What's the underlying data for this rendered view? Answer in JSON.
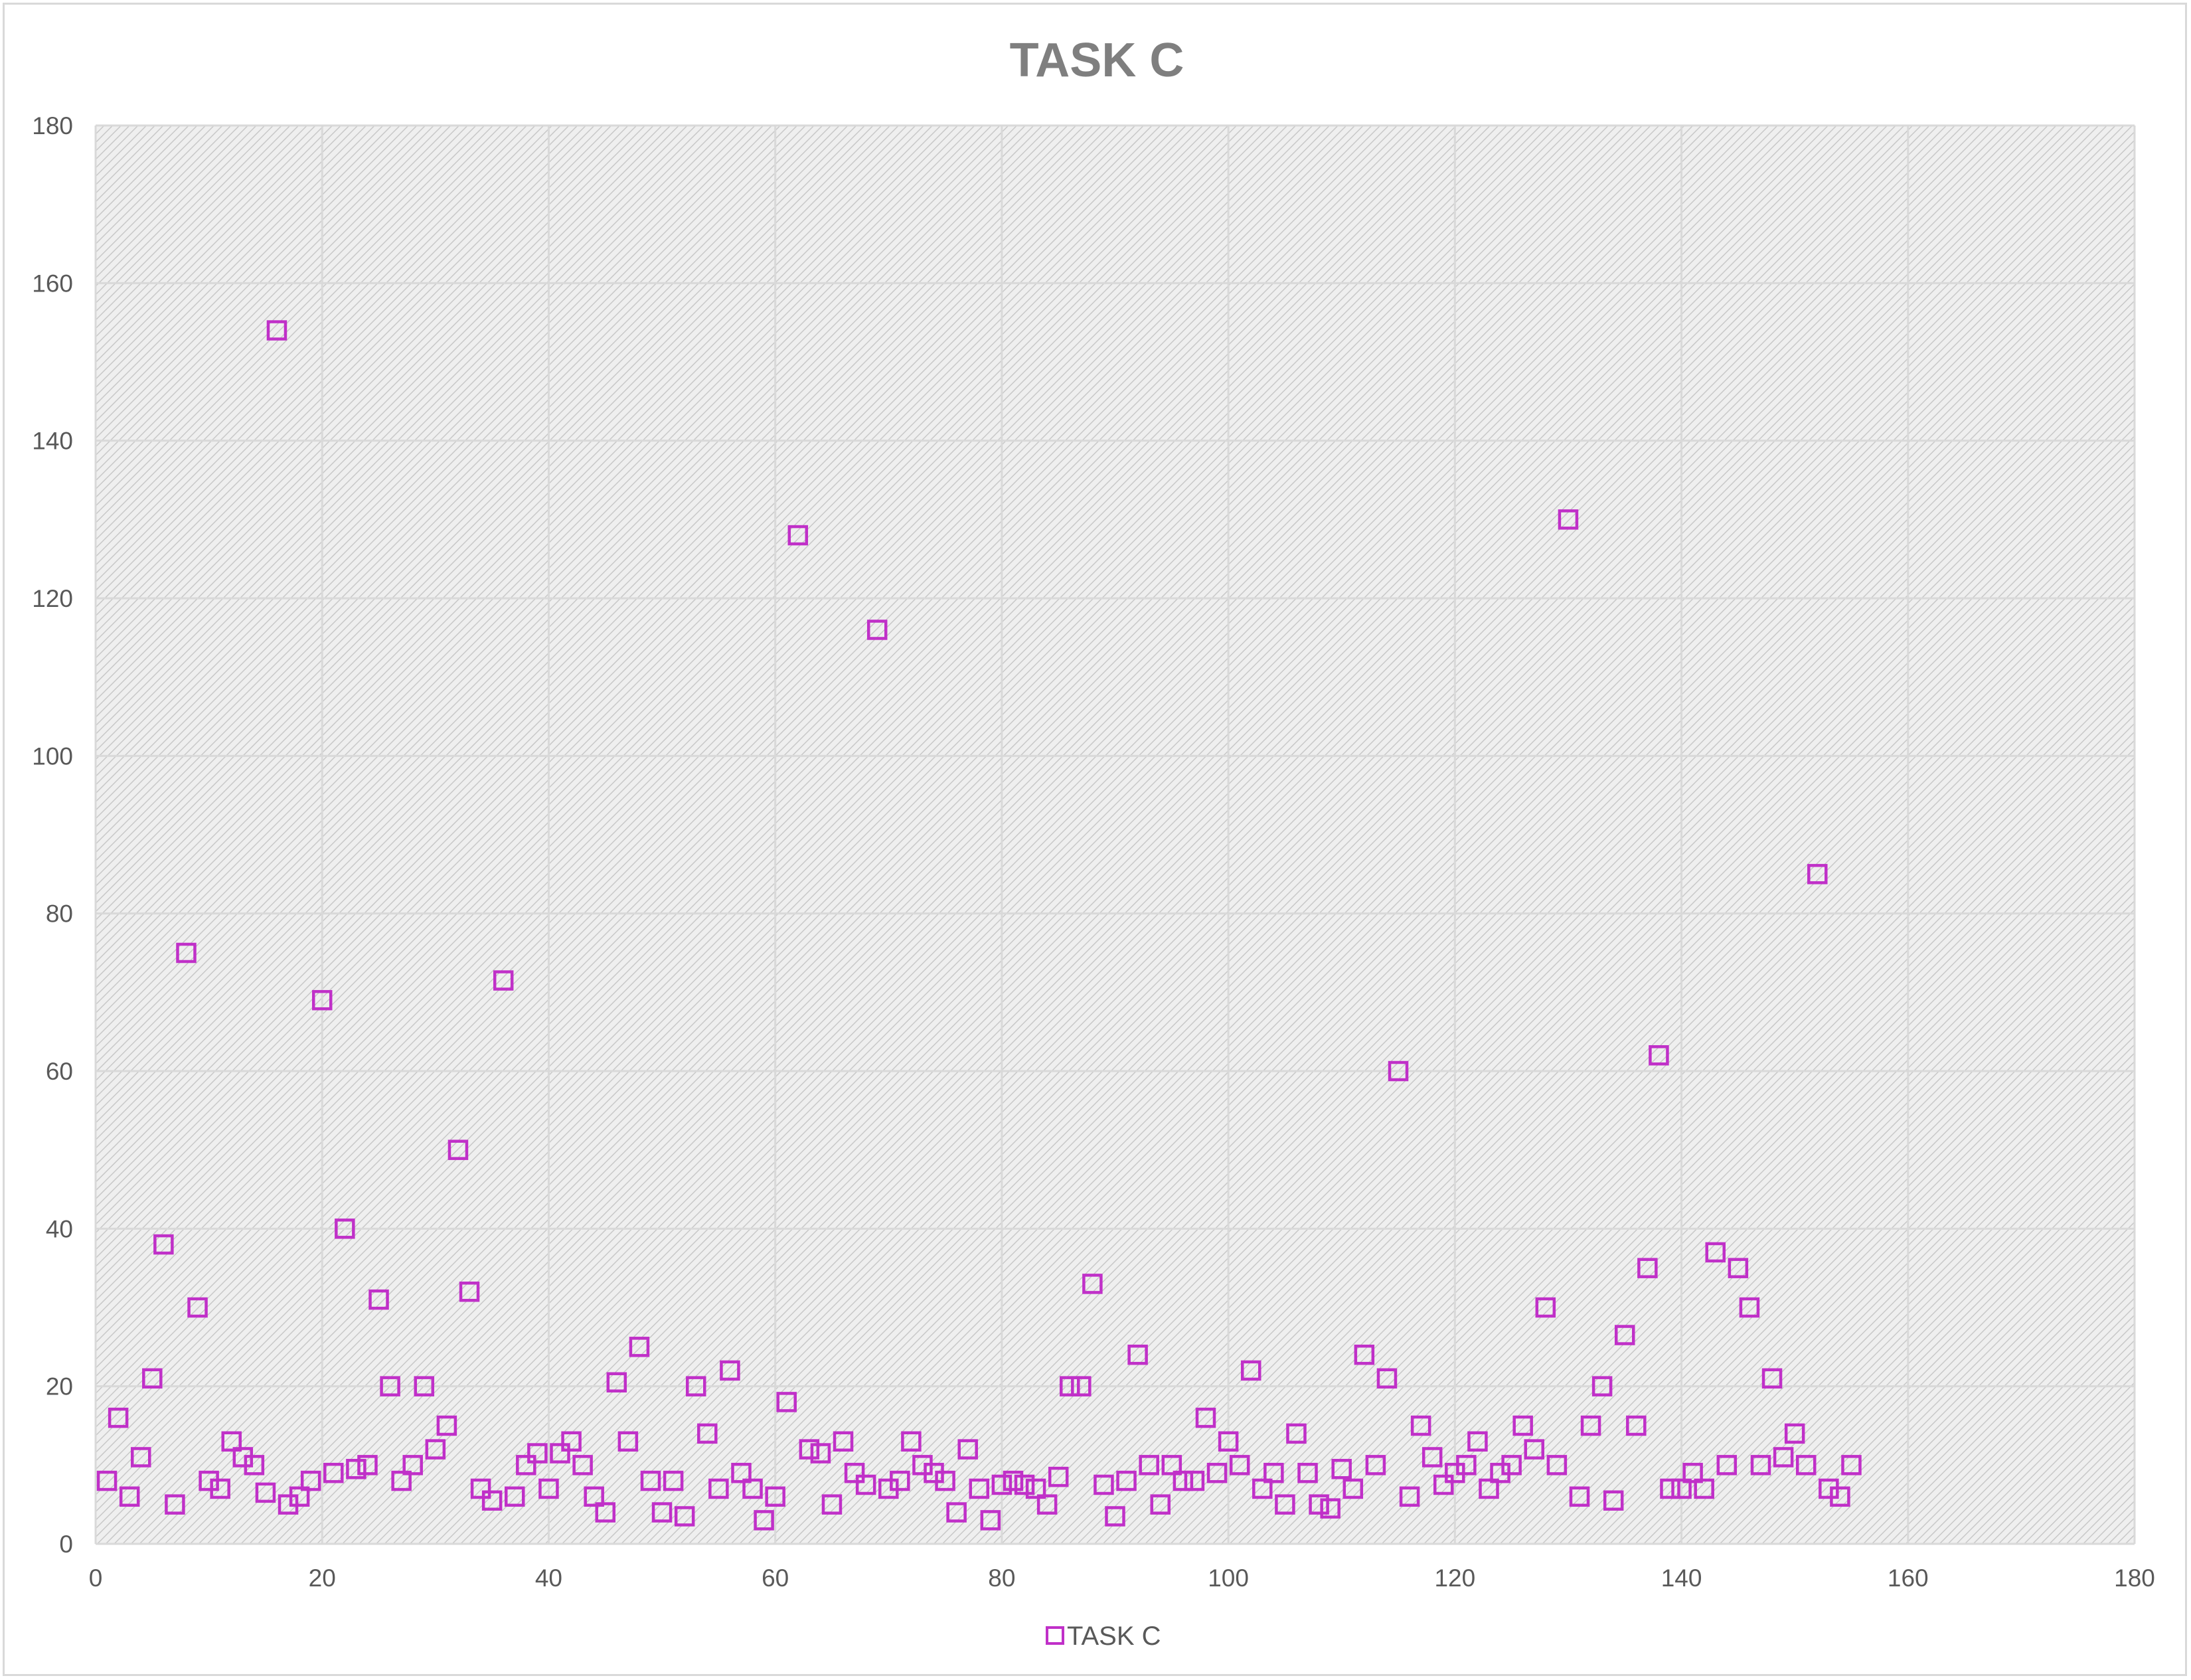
{
  "chart_data": {
    "type": "scatter",
    "title": "TASK C",
    "xlabel": "",
    "ylabel": "",
    "xlim": [
      0,
      180
    ],
    "ylim": [
      0,
      180
    ],
    "xticks": [
      0,
      20,
      40,
      60,
      80,
      100,
      120,
      140,
      160,
      180
    ],
    "yticks": [
      0,
      20,
      40,
      60,
      80,
      100,
      120,
      140,
      160,
      180
    ],
    "grid": true,
    "legend": "bottom",
    "marker": "square",
    "colors": {
      "series": "#c030c8",
      "grid": "#d9d9d9",
      "plot_bg": "#ececec",
      "hatch": "#c8c8c8"
    },
    "series": [
      {
        "name": "TASK C",
        "points": [
          [
            1,
            8
          ],
          [
            2,
            16
          ],
          [
            3,
            6
          ],
          [
            4,
            11
          ],
          [
            5,
            21
          ],
          [
            6,
            38
          ],
          [
            7,
            5
          ],
          [
            8,
            75
          ],
          [
            9,
            30
          ],
          [
            10,
            8
          ],
          [
            11,
            7
          ],
          [
            12,
            13
          ],
          [
            13,
            11
          ],
          [
            14,
            10
          ],
          [
            15,
            6.5
          ],
          [
            16,
            154
          ],
          [
            17,
            5
          ],
          [
            18,
            6
          ],
          [
            19,
            8
          ],
          [
            20,
            69
          ],
          [
            21,
            9
          ],
          [
            22,
            40
          ],
          [
            23,
            9.5
          ],
          [
            24,
            10
          ],
          [
            25,
            31
          ],
          [
            26,
            20
          ],
          [
            27,
            8
          ],
          [
            28,
            10
          ],
          [
            29,
            20
          ],
          [
            30,
            12
          ],
          [
            31,
            15
          ],
          [
            32,
            50
          ],
          [
            33,
            32
          ],
          [
            34,
            7
          ],
          [
            35,
            5.5
          ],
          [
            36,
            71.5
          ],
          [
            37,
            6
          ],
          [
            38,
            10
          ],
          [
            39,
            11.5
          ],
          [
            40,
            7
          ],
          [
            41,
            11.5
          ],
          [
            42,
            13
          ],
          [
            43,
            10
          ],
          [
            44,
            6
          ],
          [
            45,
            4
          ],
          [
            46,
            20.5
          ],
          [
            47,
            13
          ],
          [
            48,
            25
          ],
          [
            49,
            8
          ],
          [
            50,
            4
          ],
          [
            51,
            8
          ],
          [
            52,
            3.5
          ],
          [
            53,
            20
          ],
          [
            54,
            14
          ],
          [
            55,
            7
          ],
          [
            56,
            22
          ],
          [
            57,
            9
          ],
          [
            58,
            7
          ],
          [
            59,
            3
          ],
          [
            60,
            6
          ],
          [
            61,
            18
          ],
          [
            62,
            128
          ],
          [
            63,
            12
          ],
          [
            64,
            11.5
          ],
          [
            65,
            5
          ],
          [
            66,
            13
          ],
          [
            67,
            9
          ],
          [
            68,
            7.5
          ],
          [
            69,
            116
          ],
          [
            70,
            7
          ],
          [
            71,
            8
          ],
          [
            72,
            13
          ],
          [
            73,
            10
          ],
          [
            74,
            9
          ],
          [
            75,
            8
          ],
          [
            76,
            4
          ],
          [
            77,
            12
          ],
          [
            78,
            7
          ],
          [
            79,
            3
          ],
          [
            80,
            7.5
          ],
          [
            81,
            8
          ],
          [
            82,
            7.5
          ],
          [
            83,
            7
          ],
          [
            84,
            5
          ],
          [
            85,
            8.5
          ],
          [
            86,
            20
          ],
          [
            87,
            20
          ],
          [
            88,
            33
          ],
          [
            89,
            7.5
          ],
          [
            90,
            3.5
          ],
          [
            91,
            8
          ],
          [
            92,
            24
          ],
          [
            93,
            10
          ],
          [
            94,
            5
          ],
          [
            95,
            10
          ],
          [
            96,
            8
          ],
          [
            97,
            8
          ],
          [
            98,
            16
          ],
          [
            99,
            9
          ],
          [
            100,
            13
          ],
          [
            101,
            10
          ],
          [
            102,
            22
          ],
          [
            103,
            7
          ],
          [
            104,
            9
          ],
          [
            105,
            5
          ],
          [
            106,
            14
          ],
          [
            107,
            9
          ],
          [
            108,
            5
          ],
          [
            109,
            4.5
          ],
          [
            110,
            9.5
          ],
          [
            111,
            7
          ],
          [
            112,
            24
          ],
          [
            113,
            10
          ],
          [
            114,
            21
          ],
          [
            115,
            60
          ],
          [
            116,
            6
          ],
          [
            117,
            15
          ],
          [
            118,
            11
          ],
          [
            119,
            7.5
          ],
          [
            120,
            9
          ],
          [
            121,
            10
          ],
          [
            122,
            13
          ],
          [
            123,
            7
          ],
          [
            124,
            9
          ],
          [
            125,
            10
          ],
          [
            126,
            15
          ],
          [
            127,
            12
          ],
          [
            128,
            30
          ],
          [
            129,
            10
          ],
          [
            130,
            130
          ],
          [
            131,
            6
          ],
          [
            132,
            15
          ],
          [
            133,
            20
          ],
          [
            134,
            5.5
          ],
          [
            135,
            26.5
          ],
          [
            136,
            15
          ],
          [
            137,
            35
          ],
          [
            138,
            62
          ],
          [
            139,
            7
          ],
          [
            140,
            7
          ],
          [
            141,
            9
          ],
          [
            142,
            7
          ],
          [
            143,
            37
          ],
          [
            144,
            10
          ],
          [
            145,
            35
          ],
          [
            146,
            30
          ],
          [
            147,
            10
          ],
          [
            148,
            21
          ],
          [
            149,
            11
          ],
          [
            150,
            14
          ],
          [
            151,
            10
          ],
          [
            152,
            85
          ],
          [
            153,
            7
          ],
          [
            154,
            6
          ],
          [
            155,
            10
          ]
        ]
      }
    ]
  }
}
